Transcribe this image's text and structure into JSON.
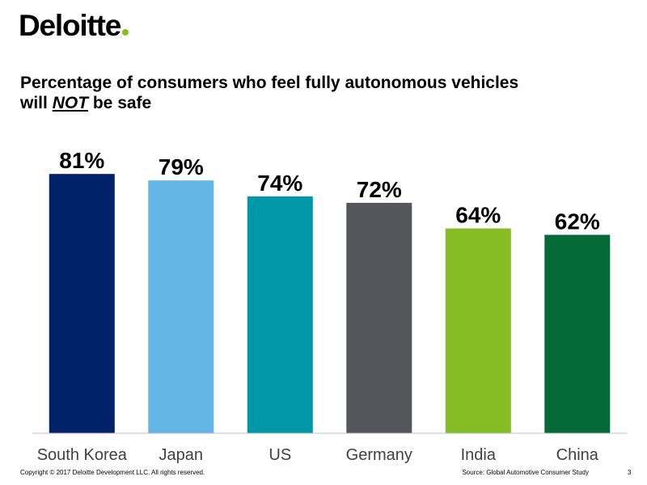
{
  "brand": {
    "name": "Deloitte",
    "dot_color": "#86BC25"
  },
  "title": {
    "line1": "Percentage of consumers who feel fully autonomous vehicles",
    "line2_prefix": "will ",
    "line2_emphasis": "NOT",
    "line2_suffix": " be safe"
  },
  "chart_data": {
    "type": "bar",
    "title": "Percentage of consumers who feel fully autonomous vehicles will NOT be safe",
    "categories": [
      "South Korea",
      "Japan",
      "US",
      "Germany",
      "India",
      "China"
    ],
    "values": [
      81,
      79,
      74,
      72,
      64,
      62
    ],
    "value_labels": [
      "81%",
      "79%",
      "74%",
      "72%",
      "64%",
      "62%"
    ],
    "colors": [
      "#012169",
      "#62B5E5",
      "#0097A9",
      "#53565A",
      "#86BC25",
      "#046A38"
    ],
    "ylim": [
      0,
      100
    ],
    "xlabel": "",
    "ylabel": "",
    "grid": false
  },
  "footer": {
    "copyright": "Copyright © 2017 Deloitte Development LLC. All rights reserved.",
    "source": "Source: Global Automotive Consumer Study",
    "page_number": "3"
  }
}
